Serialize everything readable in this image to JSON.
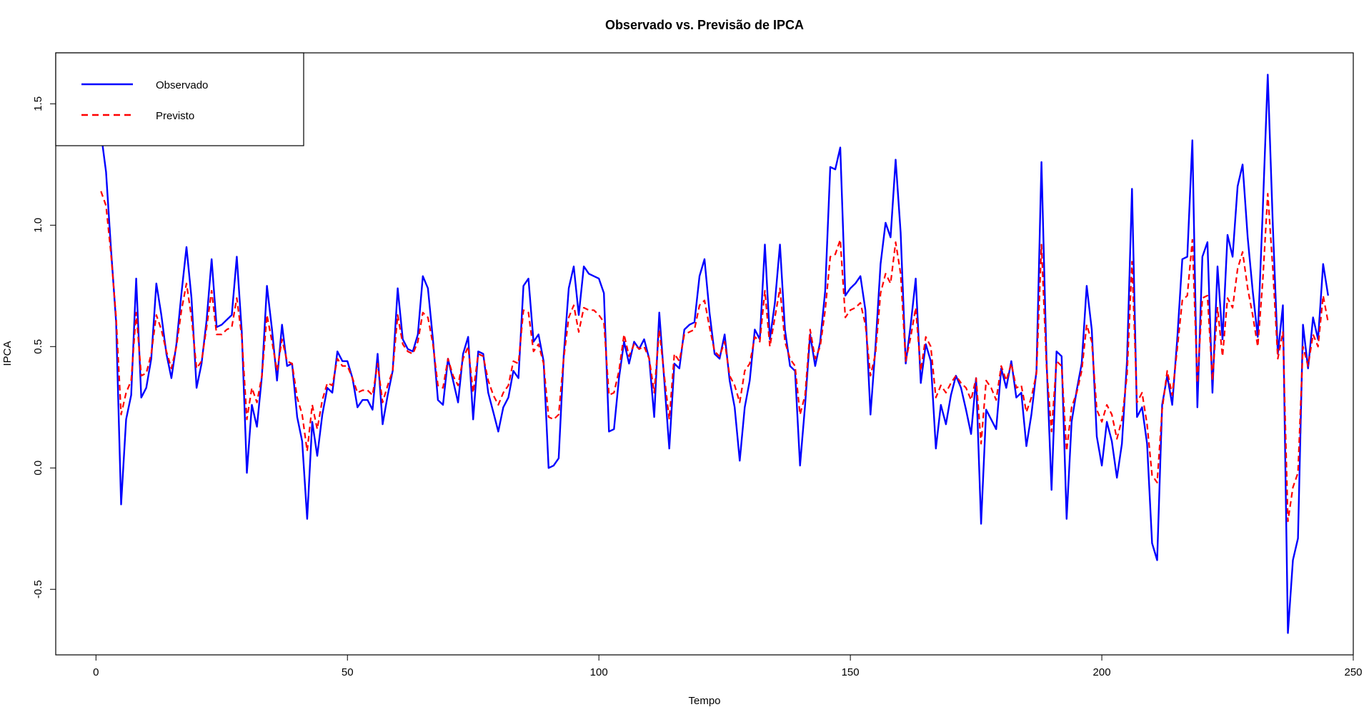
{
  "chart_data": {
    "type": "line",
    "title": "Observado vs. Previsão de IPCA",
    "xlabel": "Tempo",
    "ylabel": "IPCA",
    "xlim": [
      -8,
      250
    ],
    "ylim": [
      -0.77,
      1.71
    ],
    "x_ticks": [
      "0",
      "50",
      "100",
      "150",
      "200",
      "250"
    ],
    "x_tick_values": [
      0,
      50,
      100,
      150,
      200,
      250
    ],
    "y_ticks": [
      "-0.5",
      "0.0",
      "0.5",
      "1.0",
      "1.5"
    ],
    "y_tick_values": [
      -0.5,
      0.0,
      0.5,
      1.0,
      1.5
    ],
    "legend_position": "top-left",
    "grid": false,
    "series": [
      {
        "name": "Observado",
        "color": "#0000ff",
        "style": "solid",
        "x_start": 1,
        "values": [
          1.38,
          1.22,
          0.9,
          0.6,
          -0.15,
          0.2,
          0.3,
          0.78,
          0.29,
          0.33,
          0.45,
          0.76,
          0.63,
          0.47,
          0.37,
          0.51,
          0.72,
          0.91,
          0.7,
          0.33,
          0.43,
          0.61,
          0.86,
          0.58,
          0.59,
          0.61,
          0.63,
          0.87,
          0.56,
          -0.02,
          0.26,
          0.17,
          0.38,
          0.75,
          0.57,
          0.36,
          0.59,
          0.42,
          0.43,
          0.21,
          0.11,
          -0.21,
          0.19,
          0.05,
          0.22,
          0.33,
          0.31,
          0.48,
          0.44,
          0.44,
          0.37,
          0.25,
          0.28,
          0.28,
          0.24,
          0.47,
          0.18,
          0.3,
          0.4,
          0.74,
          0.53,
          0.49,
          0.48,
          0.55,
          0.79,
          0.74,
          0.53,
          0.28,
          0.26,
          0.45,
          0.36,
          0.27,
          0.47,
          0.54,
          0.2,
          0.48,
          0.47,
          0.31,
          0.23,
          0.15,
          0.25,
          0.29,
          0.4,
          0.37,
          0.75,
          0.78,
          0.52,
          0.55,
          0.44,
          0.0,
          0.01,
          0.04,
          0.46,
          0.74,
          0.83,
          0.63,
          0.83,
          0.8,
          0.79,
          0.78,
          0.72,
          0.15,
          0.16,
          0.37,
          0.52,
          0.43,
          0.52,
          0.49,
          0.53,
          0.45,
          0.21,
          0.64,
          0.36,
          0.08,
          0.43,
          0.41,
          0.57,
          0.59,
          0.6,
          0.79,
          0.86,
          0.64,
          0.47,
          0.45,
          0.55,
          0.36,
          0.25,
          0.03,
          0.25,
          0.36,
          0.57,
          0.53,
          0.92,
          0.53,
          0.68,
          0.92,
          0.57,
          0.42,
          0.4,
          0.01,
          0.26,
          0.55,
          0.42,
          0.52,
          0.73,
          1.24,
          1.23,
          1.32,
          0.71,
          0.74,
          0.76,
          0.79,
          0.65,
          0.22,
          0.5,
          0.84,
          1.01,
          0.95,
          1.27,
          0.97,
          0.43,
          0.59,
          0.78,
          0.35,
          0.51,
          0.44,
          0.08,
          0.26,
          0.18,
          0.3,
          0.38,
          0.33,
          0.24,
          0.14,
          0.37,
          -0.23,
          0.24,
          0.2,
          0.16,
          0.41,
          0.33,
          0.44,
          0.29,
          0.31,
          0.09,
          0.22,
          0.4,
          1.26,
          0.45,
          -0.09,
          0.48,
          0.46,
          -0.21,
          0.19,
          0.32,
          0.43,
          0.75,
          0.57,
          0.13,
          0.01,
          0.19,
          0.11,
          -0.04,
          0.1,
          0.44,
          1.15,
          0.21,
          0.25,
          0.1,
          -0.31,
          -0.38,
          0.26,
          0.38,
          0.26,
          0.53,
          0.86,
          0.87,
          1.35,
          0.25,
          0.87,
          0.93,
          0.31,
          0.83,
          0.53,
          0.96,
          0.87,
          1.16,
          1.25,
          0.95,
          0.73,
          0.54,
          1.06,
          1.62,
          1.0,
          0.47,
          0.67,
          -0.68,
          -0.38,
          -0.29,
          0.59,
          0.41,
          0.62,
          0.53,
          0.84,
          0.71
        ]
      },
      {
        "name": "Previsto",
        "color": "#ff0000",
        "style": "dashed",
        "x_start": 1,
        "values": [
          1.14,
          1.08,
          0.88,
          0.62,
          0.22,
          0.31,
          0.36,
          0.64,
          0.38,
          0.39,
          0.47,
          0.63,
          0.57,
          0.48,
          0.41,
          0.5,
          0.65,
          0.76,
          0.62,
          0.41,
          0.44,
          0.58,
          0.73,
          0.55,
          0.55,
          0.57,
          0.58,
          0.7,
          0.54,
          0.2,
          0.33,
          0.27,
          0.38,
          0.63,
          0.52,
          0.4,
          0.53,
          0.44,
          0.43,
          0.29,
          0.22,
          0.07,
          0.26,
          0.16,
          0.28,
          0.35,
          0.34,
          0.45,
          0.42,
          0.42,
          0.37,
          0.31,
          0.32,
          0.32,
          0.3,
          0.43,
          0.27,
          0.34,
          0.4,
          0.63,
          0.51,
          0.48,
          0.47,
          0.52,
          0.64,
          0.62,
          0.51,
          0.34,
          0.33,
          0.45,
          0.38,
          0.34,
          0.45,
          0.5,
          0.31,
          0.47,
          0.46,
          0.36,
          0.3,
          0.26,
          0.31,
          0.34,
          0.44,
          0.43,
          0.65,
          0.64,
          0.48,
          0.51,
          0.43,
          0.21,
          0.2,
          0.22,
          0.45,
          0.62,
          0.67,
          0.56,
          0.66,
          0.65,
          0.65,
          0.63,
          0.6,
          0.3,
          0.31,
          0.4,
          0.55,
          0.46,
          0.51,
          0.49,
          0.5,
          0.45,
          0.31,
          0.57,
          0.38,
          0.2,
          0.47,
          0.44,
          0.55,
          0.56,
          0.57,
          0.67,
          0.69,
          0.58,
          0.48,
          0.46,
          0.52,
          0.38,
          0.34,
          0.27,
          0.4,
          0.43,
          0.54,
          0.52,
          0.73,
          0.5,
          0.62,
          0.74,
          0.52,
          0.45,
          0.42,
          0.22,
          0.3,
          0.57,
          0.45,
          0.5,
          0.65,
          0.87,
          0.88,
          0.94,
          0.62,
          0.65,
          0.66,
          0.68,
          0.59,
          0.38,
          0.47,
          0.72,
          0.8,
          0.76,
          0.93,
          0.8,
          0.44,
          0.54,
          0.66,
          0.4,
          0.54,
          0.5,
          0.29,
          0.34,
          0.31,
          0.35,
          0.38,
          0.35,
          0.33,
          0.28,
          0.37,
          0.1,
          0.36,
          0.33,
          0.28,
          0.42,
          0.36,
          0.43,
          0.33,
          0.34,
          0.23,
          0.29,
          0.39,
          0.92,
          0.42,
          0.15,
          0.44,
          0.42,
          0.07,
          0.25,
          0.31,
          0.4,
          0.59,
          0.52,
          0.24,
          0.19,
          0.26,
          0.22,
          0.12,
          0.2,
          0.38,
          0.85,
          0.27,
          0.31,
          0.18,
          -0.03,
          -0.06,
          0.24,
          0.4,
          0.3,
          0.49,
          0.69,
          0.71,
          0.94,
          0.35,
          0.7,
          0.71,
          0.36,
          0.66,
          0.46,
          0.7,
          0.66,
          0.82,
          0.89,
          0.74,
          0.63,
          0.5,
          0.77,
          1.13,
          0.82,
          0.45,
          0.56,
          -0.22,
          -0.08,
          -0.02,
          0.5,
          0.42,
          0.55,
          0.5,
          0.71,
          0.6
        ]
      }
    ]
  }
}
